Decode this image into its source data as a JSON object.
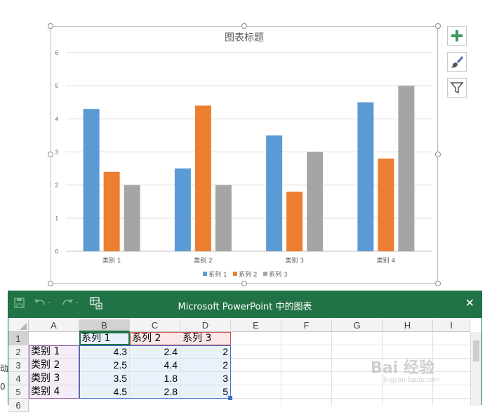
{
  "chart_data": {
    "type": "bar",
    "title": "图表标题",
    "categories": [
      "类别 1",
      "类别 2",
      "类别 3",
      "类别 4"
    ],
    "series": [
      {
        "name": "系列 1",
        "values": [
          4.3,
          2.5,
          3.5,
          4.5
        ],
        "color": "#5b9bd5"
      },
      {
        "name": "系列 2",
        "values": [
          2.4,
          4.4,
          1.8,
          2.8
        ],
        "color": "#ed7d31"
      },
      {
        "name": "系列 3",
        "values": [
          2,
          2,
          3,
          5
        ],
        "color": "#a5a5a5"
      }
    ],
    "ylim": [
      0,
      6
    ],
    "yticks": [
      "0",
      "1",
      "2",
      "3",
      "4",
      "5",
      "6"
    ],
    "grid": true,
    "legend": "bottom"
  },
  "chart_tools": {
    "add_icon": "plus-icon",
    "style_icon": "brush-icon",
    "filter_icon": "filter-icon"
  },
  "left_fragments": [
    "动",
    "0"
  ],
  "excel": {
    "window_title": "Microsoft PowerPoint 中的图表",
    "close_glyph": "✕",
    "columns": [
      "A",
      "B",
      "C",
      "D",
      "E",
      "F",
      "G",
      "H",
      "I"
    ],
    "rows": [
      "1",
      "2",
      "3",
      "4",
      "5",
      "6"
    ],
    "header_row": [
      "",
      "系列 1",
      "系列 2",
      "系列 3"
    ],
    "data_rows": [
      [
        "类别 1",
        "4.3",
        "2.4",
        "2"
      ],
      [
        "类别 2",
        "2.5",
        "4.4",
        "2"
      ],
      [
        "类别 3",
        "3.5",
        "1.8",
        "3"
      ],
      [
        "类别 4",
        "4.5",
        "2.8",
        "5"
      ]
    ],
    "toolbar_icons": [
      "save-icon",
      "undo-icon",
      "redo-icon",
      "edit-data-icon"
    ]
  },
  "watermark": {
    "main": "Bai 经验",
    "sub": "jingyan.baidu.com"
  }
}
